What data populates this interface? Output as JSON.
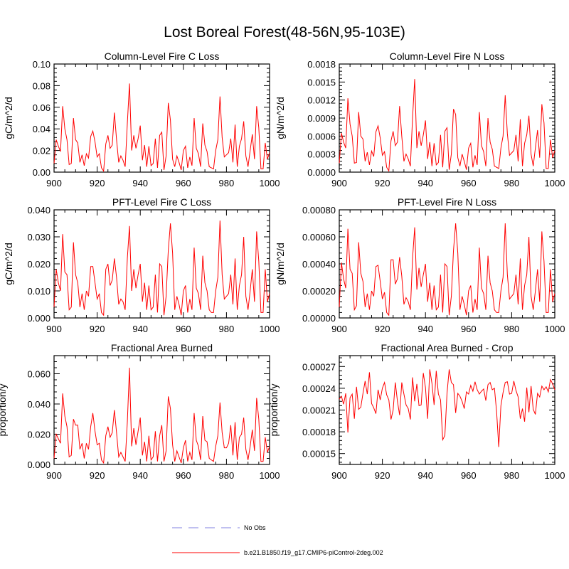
{
  "figure_title": "Lost Boreal Forest(48-56N,95-103E)",
  "colors": {
    "series": "#ff0000",
    "obs": "#9a9ae6",
    "axis": "#000000"
  },
  "legend": {
    "obs_label": "No Obs",
    "model_label": "b.e21.B1850.f19_g17.CMIP6-piControl-2deg.002"
  },
  "chart_data": [
    {
      "type": "line",
      "title": "Column-Level Fire C Loss",
      "xlabel": "",
      "ylabel": "gC/m^2/d",
      "xlim": [
        900,
        1000
      ],
      "ylim": [
        0,
        0.1
      ],
      "xticks": [
        900,
        920,
        940,
        960,
        980,
        1000
      ],
      "xtick_labels": [
        "900",
        "920",
        "940",
        "960",
        "980",
        "1000"
      ],
      "yticks": [
        0,
        0.02,
        0.04,
        0.06,
        0.08,
        0.1
      ],
      "ytick_labels": [
        "0.00",
        "0.02",
        "0.04",
        "0.06",
        "0.08",
        "0.10"
      ],
      "series": [
        {
          "name": "b.e21.B1850.f19_g17.CMIP6-piControl-2deg.002",
          "x_start": 900,
          "x_step": 1,
          "values": [
            0.008,
            0.03,
            0.024,
            0.019,
            0.061,
            0.04,
            0.03,
            0.007,
            0.008,
            0.05,
            0.03,
            0.027,
            0.009,
            0.016,
            0.006,
            0.017,
            0.013,
            0.033,
            0.038,
            0.028,
            0.014,
            0.017,
            0.004,
            0.001,
            0.026,
            0.034,
            0.022,
            0.025,
            0.055,
            0.03,
            0.009,
            0.015,
            0.011,
            0.005,
            0.045,
            0.082,
            0.02,
            0.034,
            0.022,
            0.031,
            0.043,
            0.011,
            0.025,
            0.005,
            0.024,
            0.006,
            0.008,
            0.031,
            0.004,
            0.034,
            0.037,
            0.002,
            0.015,
            0.064,
            0.048,
            0.012,
            0.005,
            0.015,
            0.009,
            0.002,
            0.02,
            0.024,
            0.004,
            0.014,
            0.006,
            0.05,
            0.022,
            0.017,
            0.005,
            0.045,
            0.025,
            0.019,
            0.005,
            0.004,
            0.003,
            0.02,
            0.03,
            0.07,
            0.032,
            0.014,
            0.016,
            0.018,
            0.031,
            0.009,
            0.044,
            0.005,
            0.024,
            0.031,
            0.047,
            0.015,
            0.005,
            0.02,
            0.035,
            0.012,
            0.061,
            0.041,
            0.003,
            0.003,
            0.027,
            0.012,
            0.018
          ]
        }
      ]
    },
    {
      "type": "line",
      "title": "Column-Level Fire N Loss",
      "xlabel": "",
      "ylabel": "gN/m^2/d",
      "xlim": [
        900,
        1000
      ],
      "ylim": [
        0,
        0.0018
      ],
      "xticks": [
        900,
        920,
        940,
        960,
        980,
        1000
      ],
      "xtick_labels": [
        "900",
        "920",
        "940",
        "960",
        "980",
        "1000"
      ],
      "yticks": [
        0,
        0.0003,
        0.0006,
        0.0009,
        0.0012,
        0.0015,
        0.0018
      ],
      "ytick_labels": [
        "0.0000",
        "0.0003",
        "0.0006",
        "0.0009",
        "0.0012",
        "0.0015",
        "0.0018"
      ],
      "series": [
        {
          "name": "b.e21.B1850.f19_g17.CMIP6-piControl-2deg.002",
          "x_start": 900,
          "x_step": 1,
          "values": [
            0.00015,
            0.00065,
            0.0005,
            0.0004,
            0.00123,
            0.0008,
            0.0006,
            0.00015,
            0.00016,
            0.001,
            0.0006,
            0.00055,
            0.00018,
            0.00033,
            0.00012,
            0.00035,
            0.00026,
            0.00067,
            0.00077,
            0.00057,
            0.00028,
            0.00034,
            8e-05,
            2e-05,
            0.00052,
            0.00068,
            0.00044,
            0.0005,
            0.0011,
            0.0006,
            0.00018,
            0.0003,
            0.00022,
            0.0001,
            0.0009,
            0.00155,
            0.0004,
            0.00068,
            0.00044,
            0.00062,
            0.00086,
            0.00022,
            0.0005,
            0.0001,
            0.00048,
            0.00012,
            0.00016,
            0.00062,
            8e-05,
            0.00068,
            0.00074,
            4e-05,
            0.0003,
            0.00105,
            0.00096,
            0.00024,
            0.0001,
            0.0003,
            0.00018,
            4e-05,
            0.0004,
            0.00048,
            8e-05,
            0.00028,
            0.00012,
            0.001,
            0.00044,
            0.00034,
            0.0001,
            0.0009,
            0.0005,
            0.00038,
            0.0001,
            8e-05,
            6e-05,
            0.0004,
            0.0006,
            0.00128,
            0.00064,
            0.00028,
            0.00032,
            0.00036,
            0.00062,
            0.00018,
            0.00088,
            0.0001,
            0.00048,
            0.00062,
            0.00094,
            0.0003,
            0.0001,
            0.0004,
            0.0007,
            0.00024,
            0.00113,
            0.00082,
            6e-05,
            6e-05,
            0.00054,
            0.00024,
            0.00036
          ]
        }
      ]
    },
    {
      "type": "line",
      "title": "PFT-Level Fire C Loss",
      "xlabel": "",
      "ylabel": "gC/m^2/d",
      "xlim": [
        900,
        1000
      ],
      "ylim": [
        0,
        0.04
      ],
      "xticks": [
        900,
        920,
        940,
        960,
        980,
        1000
      ],
      "xtick_labels": [
        "900",
        "920",
        "940",
        "960",
        "980",
        "1000"
      ],
      "yticks": [
        0,
        0.01,
        0.02,
        0.03,
        0.04
      ],
      "ytick_labels": [
        "0.000",
        "0.010",
        "0.020",
        "0.030",
        "0.040"
      ],
      "series": [
        {
          "name": "b.e21.B1850.f19_g17.CMIP6-piControl-2deg.002",
          "x_start": 900,
          "x_step": 1,
          "values": [
            0.004,
            0.018,
            0.013,
            0.01,
            0.031,
            0.017,
            0.016,
            0.003,
            0.004,
            0.028,
            0.016,
            0.013,
            0.004,
            0.009,
            0.003,
            0.01,
            0.008,
            0.019,
            0.019,
            0.013,
            0.007,
            0.009,
            0.002,
            0.001,
            0.018,
            0.02,
            0.012,
            0.014,
            0.022,
            0.015,
            0.005,
            0.007,
            0.006,
            0.003,
            0.022,
            0.034,
            0.01,
            0.018,
            0.011,
            0.016,
            0.02,
            0.006,
            0.013,
            0.003,
            0.012,
            0.003,
            0.004,
            0.016,
            0.002,
            0.02,
            0.019,
            0.001,
            0.008,
            0.025,
            0.035,
            0.024,
            0.003,
            0.008,
            0.005,
            0.001,
            0.01,
            0.012,
            0.002,
            0.007,
            0.003,
            0.026,
            0.011,
            0.009,
            0.003,
            0.023,
            0.013,
            0.01,
            0.003,
            0.002,
            0.002,
            0.01,
            0.015,
            0.036,
            0.016,
            0.007,
            0.008,
            0.009,
            0.016,
            0.005,
            0.022,
            0.003,
            0.012,
            0.016,
            0.03,
            0.008,
            0.003,
            0.01,
            0.018,
            0.006,
            0.032,
            0.021,
            0.002,
            0.002,
            0.018,
            0.006,
            0.009
          ]
        }
      ]
    },
    {
      "type": "line",
      "title": "PFT-Level Fire N Loss",
      "xlabel": "",
      "ylabel": "gN/m^2/d",
      "xlim": [
        900,
        1000
      ],
      "ylim": [
        0,
        0.0008
      ],
      "xticks": [
        900,
        920,
        940,
        960,
        980,
        1000
      ],
      "xtick_labels": [
        "900",
        "920",
        "940",
        "960",
        "980",
        "1000"
      ],
      "yticks": [
        0,
        0.0002,
        0.0004,
        0.0006,
        0.0008
      ],
      "ytick_labels": [
        "0.00000",
        "0.00020",
        "0.00040",
        "0.00060",
        "0.00080"
      ],
      "series": [
        {
          "name": "b.e21.B1850.f19_g17.CMIP6-piControl-2deg.002",
          "x_start": 900,
          "x_step": 1,
          "values": [
            8e-05,
            0.00041,
            0.00029,
            0.00022,
            0.00066,
            0.00036,
            0.00033,
            6e-05,
            9e-05,
            0.00056,
            0.00033,
            0.00027,
            8e-05,
            0.00018,
            6e-05,
            0.0002,
            0.00016,
            0.00038,
            0.00039,
            0.00027,
            0.00014,
            0.00019,
            4e-05,
            2e-05,
            0.00043,
            0.00043,
            0.00025,
            0.00029,
            0.00045,
            0.00031,
            0.0001,
            0.00015,
            0.00012,
            6e-05,
            0.00044,
            0.00067,
            0.00021,
            0.00037,
            0.00023,
            0.00032,
            0.0004,
            0.00012,
            0.00026,
            6e-05,
            0.00024,
            6e-05,
            8e-05,
            0.00032,
            4e-05,
            0.0004,
            0.00038,
            2e-05,
            0.00016,
            0.0005,
            0.0007,
            0.00048,
            6e-05,
            0.00016,
            0.0001,
            2e-05,
            0.0002,
            0.00024,
            4e-05,
            0.00014,
            6e-05,
            0.00052,
            0.00022,
            0.00018,
            6e-05,
            0.00046,
            0.00026,
            0.0002,
            6e-05,
            4e-05,
            4e-05,
            0.0002,
            0.0003,
            0.0007,
            0.00032,
            0.00014,
            0.00016,
            0.00018,
            0.00032,
            0.0001,
            0.00044,
            6e-05,
            0.00024,
            0.00032,
            0.0006,
            0.00016,
            6e-05,
            0.0002,
            0.00036,
            0.00012,
            0.00064,
            0.00042,
            4e-05,
            4e-05,
            0.00036,
            0.00012,
            0.00018
          ]
        }
      ]
    },
    {
      "type": "line",
      "title": "Fractional Area Burned",
      "xlabel": "",
      "ylabel": "proportion/y",
      "xlim": [
        900,
        1000
      ],
      "ylim": [
        0,
        0.072
      ],
      "xticks": [
        900,
        920,
        940,
        960,
        980,
        1000
      ],
      "xtick_labels": [
        "900",
        "920",
        "940",
        "960",
        "980",
        "1000"
      ],
      "yticks": [
        0,
        0.02,
        0.04,
        0.06
      ],
      "ytick_labels": [
        "0.000",
        "0.020",
        "0.040",
        "0.060"
      ],
      "series": [
        {
          "name": "b.e21.B1850.f19_g17.CMIP6-piControl-2deg.002",
          "x_start": 900,
          "x_step": 1,
          "values": [
            0.004,
            0.02,
            0.017,
            0.014,
            0.047,
            0.032,
            0.025,
            0.005,
            0.006,
            0.03,
            0.026,
            0.026,
            0.01,
            0.014,
            0.004,
            0.014,
            0.01,
            0.025,
            0.034,
            0.022,
            0.013,
            0.014,
            0.003,
            0.001,
            0.019,
            0.025,
            0.018,
            0.021,
            0.036,
            0.021,
            0.005,
            0.008,
            0.005,
            0.002,
            0.028,
            0.064,
            0.012,
            0.024,
            0.013,
            0.022,
            0.031,
            0.006,
            0.015,
            0.002,
            0.019,
            0.003,
            0.005,
            0.022,
            0.002,
            0.019,
            0.026,
            0.002,
            0.009,
            0.045,
            0.037,
            0.013,
            0.002,
            0.009,
            0.005,
            0.001,
            0.011,
            0.016,
            0.002,
            0.008,
            0.003,
            0.034,
            0.016,
            0.012,
            0.003,
            0.032,
            0.016,
            0.015,
            0.004,
            0.003,
            0.002,
            0.012,
            0.019,
            0.041,
            0.021,
            0.011,
            0.011,
            0.014,
            0.026,
            0.006,
            0.028,
            0.003,
            0.018,
            0.02,
            0.031,
            0.01,
            0.003,
            0.012,
            0.023,
            0.009,
            0.044,
            0.03,
            0.002,
            0.002,
            0.018,
            0.008,
            0.012
          ]
        }
      ]
    },
    {
      "type": "line",
      "title": "Fractional Area Burned - Crop",
      "xlabel": "",
      "ylabel": "proportion/y",
      "xlim": [
        900,
        1000
      ],
      "ylim": [
        0.000135,
        0.000285
      ],
      "xticks": [
        900,
        920,
        940,
        960,
        980,
        1000
      ],
      "xtick_labels": [
        "900",
        "920",
        "940",
        "960",
        "980",
        "1000"
      ],
      "yticks": [
        0.00015,
        0.00018,
        0.00021,
        0.00024,
        0.00027
      ],
      "ytick_labels": [
        "0.00015",
        "0.00018",
        "0.00021",
        "0.00024",
        "0.00027"
      ],
      "series": [
        {
          "name": "b.e21.B1850.f19_g17.CMIP6-piControl-2deg.002",
          "x_start": 900,
          "x_step": 1,
          "values": [
            0.000225,
            0.000229,
            0.000218,
            0.000233,
            0.000179,
            0.000227,
            0.000232,
            0.000198,
            0.000242,
            0.000211,
            0.000214,
            0.000233,
            0.00025,
            0.000232,
            0.000262,
            0.000219,
            0.000213,
            0.000205,
            0.000238,
            0.000224,
            0.00024,
            0.000248,
            0.000231,
            0.000224,
            0.000197,
            0.00021,
            0.000248,
            0.000222,
            0.000203,
            0.000248,
            0.000232,
            0.000217,
            0.000212,
            0.000197,
            0.000255,
            0.000222,
            0.000246,
            0.000216,
            0.000217,
            0.000261,
            0.000241,
            0.000198,
            0.000266,
            0.000247,
            0.000217,
            0.000264,
            0.000232,
            0.000224,
            0.000169,
            0.000175,
            0.000233,
            0.000266,
            0.000248,
            0.000245,
            0.000206,
            0.000233,
            0.000229,
            0.000222,
            0.000212,
            0.000235,
            0.000232,
            0.000244,
            0.000236,
            0.000249,
            0.000238,
            0.000232,
            0.000236,
            0.000239,
            0.000223,
            0.000245,
            0.000248,
            0.000238,
            0.00024,
            0.000208,
            0.000159,
            0.000216,
            0.000234,
            0.000248,
            0.000249,
            0.000232,
            0.000233,
            0.00025,
            0.000237,
            0.000228,
            0.000198,
            0.000212,
            0.000194,
            0.000241,
            0.000207,
            0.000243,
            0.000211,
            0.000204,
            0.000233,
            0.000228,
            0.000243,
            0.000238,
            0.000242,
            0.000235,
            0.000252,
            0.000246,
            0.000238
          ]
        }
      ]
    }
  ]
}
